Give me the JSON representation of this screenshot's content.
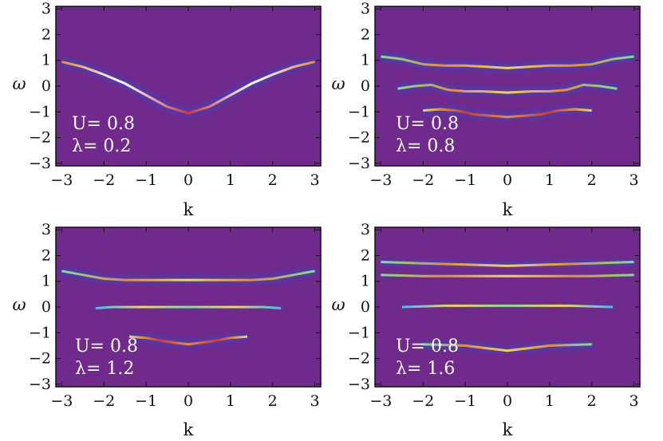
{
  "colors": {
    "background": "#6f2a8c",
    "colormap": [
      "#6f2a8c",
      "#2a4fd9",
      "#33c6e6",
      "#7fe08a",
      "#f2d64a",
      "#f08a2e",
      "#d9342b",
      "#ffffff"
    ]
  },
  "chart_data": [
    {
      "type": "heatmap",
      "title": "",
      "xlabel": "k",
      "ylabel": "ω",
      "xlim": [
        -3.14,
        3.14
      ],
      "ylim": [
        -3.1,
        3.1
      ],
      "xticks": [
        "−3",
        "−2",
        "−1",
        "0",
        "1",
        "2",
        "3"
      ],
      "yticks": [
        "3",
        "2",
        "1",
        "0",
        "−1",
        "−2",
        "−3"
      ],
      "params": {
        "U": "U= 0.8",
        "lambda": "λ= 0.2"
      },
      "bands": [
        {
          "name": "",
          "k": [
            -3.0,
            -2.5,
            -2.0,
            -1.5,
            -1.0,
            -0.5,
            0.0,
            0.5,
            1.0,
            1.5,
            2.0,
            2.5,
            3.0
          ],
          "omega": [
            0.95,
            0.75,
            0.45,
            0.1,
            -0.35,
            -0.8,
            -1.05,
            -0.8,
            -0.35,
            0.1,
            0.45,
            0.75,
            0.95
          ],
          "intensity": 0.9
        }
      ]
    },
    {
      "type": "heatmap",
      "title": "",
      "xlabel": "k",
      "ylabel": "ω",
      "xlim": [
        -3.14,
        3.14
      ],
      "ylim": [
        -3.1,
        3.1
      ],
      "xticks": [
        "−3",
        "−2",
        "−1",
        "0",
        "1",
        "2",
        "3"
      ],
      "yticks": [
        "3",
        "2",
        "1",
        "0",
        "−1",
        "−2",
        "−3"
      ],
      "params": {
        "U": "U= 0.8",
        "lambda": "λ= 0.8"
      },
      "bands": [
        {
          "name": "",
          "k": [
            -3.0,
            -2.5,
            -2.0,
            -1.5,
            -1.0,
            -0.5,
            0.0,
            0.5,
            1.0,
            1.5,
            2.0,
            2.5,
            3.0
          ],
          "omega": [
            1.15,
            1.05,
            0.85,
            0.8,
            0.8,
            0.75,
            0.7,
            0.75,
            0.8,
            0.8,
            0.85,
            1.05,
            1.15
          ],
          "intensity": 0.5
        },
        {
          "name": "",
          "k": [
            -2.6,
            -2.2,
            -1.8,
            -1.4,
            -1.0,
            -0.6,
            0.0,
            0.6,
            1.0,
            1.4,
            1.8,
            2.2,
            2.6
          ],
          "omega": [
            -0.1,
            0.0,
            0.05,
            -0.15,
            -0.2,
            -0.2,
            -0.25,
            -0.2,
            -0.2,
            -0.15,
            0.05,
            0.0,
            -0.1
          ],
          "intensity": 0.6
        },
        {
          "name": "",
          "k": [
            -2.0,
            -1.6,
            -1.2,
            -0.8,
            -0.4,
            0.0,
            0.4,
            0.8,
            1.2,
            1.6,
            2.0
          ],
          "omega": [
            -0.95,
            -0.9,
            -0.95,
            -1.1,
            -1.15,
            -1.2,
            -1.15,
            -1.1,
            -0.95,
            -0.9,
            -0.95
          ],
          "intensity": 0.75
        }
      ]
    },
    {
      "type": "heatmap",
      "title": "",
      "xlabel": "k",
      "ylabel": "ω",
      "xlim": [
        -3.14,
        3.14
      ],
      "ylim": [
        -3.1,
        3.1
      ],
      "xticks": [
        "−3",
        "−2",
        "−1",
        "0",
        "1",
        "2",
        "3"
      ],
      "yticks": [
        "3",
        "2",
        "1",
        "0",
        "−1",
        "−2",
        "−3"
      ],
      "params": {
        "U": "U= 0.8",
        "lambda": "λ= 1.2"
      },
      "bands": [
        {
          "name": "",
          "k": [
            -3.0,
            -2.5,
            -2.0,
            -1.5,
            -1.0,
            0.0,
            1.0,
            1.5,
            2.0,
            2.5,
            3.0
          ],
          "omega": [
            1.4,
            1.25,
            1.1,
            1.05,
            1.05,
            1.05,
            1.05,
            1.05,
            1.1,
            1.25,
            1.4
          ],
          "intensity": 0.6
        },
        {
          "name": "",
          "k": [
            -2.2,
            -1.8,
            -1.4,
            -1.0,
            -0.5,
            0.0,
            0.5,
            1.0,
            1.4,
            1.8,
            2.2
          ],
          "omega": [
            -0.05,
            0.0,
            0.0,
            0.0,
            0.0,
            0.0,
            0.0,
            0.0,
            0.0,
            0.0,
            -0.05
          ],
          "intensity": 0.45
        },
        {
          "name": "",
          "k": [
            -1.4,
            -1.0,
            -0.5,
            0.0,
            0.5,
            1.0,
            1.4
          ],
          "omega": [
            -1.15,
            -1.2,
            -1.35,
            -1.45,
            -1.35,
            -1.2,
            -1.15
          ],
          "intensity": 0.7
        }
      ]
    },
    {
      "type": "heatmap",
      "title": "",
      "xlabel": "k",
      "ylabel": "ω",
      "xlim": [
        -3.14,
        3.14
      ],
      "ylim": [
        -3.1,
        3.1
      ],
      "xticks": [
        "−3",
        "−2",
        "−1",
        "0",
        "1",
        "2",
        "3"
      ],
      "yticks": [
        "3",
        "2",
        "1",
        "0",
        "−1",
        "−2",
        "−3"
      ],
      "params": {
        "U": "U= 0.8",
        "lambda": "λ= 1.6"
      },
      "bands": [
        {
          "name": "",
          "k": [
            -3.0,
            -2.0,
            -1.0,
            0.0,
            1.0,
            2.0,
            3.0
          ],
          "omega": [
            1.75,
            1.7,
            1.65,
            1.6,
            1.65,
            1.7,
            1.75
          ],
          "intensity": 0.5
        },
        {
          "name": "",
          "k": [
            -3.0,
            -2.0,
            -1.0,
            0.0,
            1.0,
            2.0,
            3.0
          ],
          "omega": [
            1.25,
            1.2,
            1.2,
            1.2,
            1.2,
            1.2,
            1.25
          ],
          "intensity": 0.55
        },
        {
          "name": "",
          "k": [
            -2.5,
            -1.5,
            -0.5,
            0.0,
            0.5,
            1.5,
            2.5
          ],
          "omega": [
            0.0,
            0.05,
            0.05,
            0.05,
            0.05,
            0.05,
            0.0
          ],
          "intensity": 0.4
        },
        {
          "name": "",
          "k": [
            -2.0,
            -1.0,
            -0.5,
            0.0,
            0.5,
            1.0,
            2.0
          ],
          "omega": [
            -1.45,
            -1.5,
            -1.6,
            -1.7,
            -1.6,
            -1.5,
            -1.45
          ],
          "intensity": 0.65
        }
      ]
    }
  ]
}
